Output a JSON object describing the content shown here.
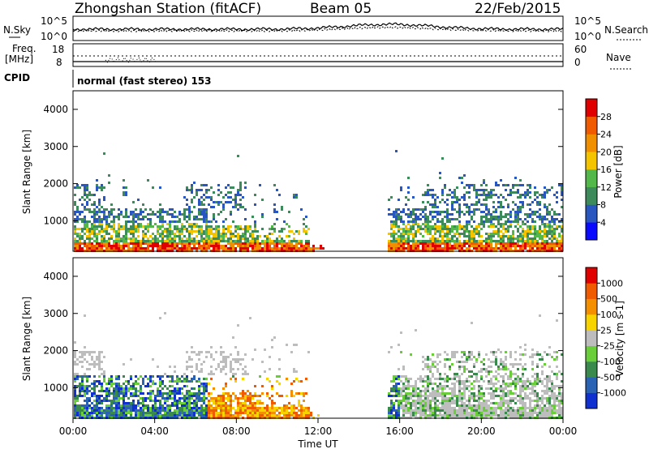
{
  "header": {
    "title": "Zhongshan Station (fitACF)",
    "beam": "Beam 05",
    "date": "22/Feb/2015"
  },
  "noise_panel": {
    "left_label": "N.Sky",
    "right_label": "N.Search",
    "left_ticks": [
      "10^5",
      "10^0"
    ],
    "right_ticks": [
      "10^5",
      "10^0"
    ]
  },
  "freq_panel": {
    "left_label_1": "Freq.",
    "left_label_2": "[MHz]",
    "left_ticks": [
      "18",
      "8"
    ],
    "right_label": "Nave",
    "right_ticks": [
      "60",
      "0"
    ]
  },
  "cpid": {
    "label": "CPID",
    "value": "normal (fast stereo) 153"
  },
  "x_axis": {
    "label": "Time UT",
    "ticks": [
      "00:00",
      "04:00",
      "08:00",
      "12:00",
      "16:00",
      "20:00",
      "00:00"
    ]
  },
  "chart_data": [
    {
      "type": "heatmap",
      "panel": "power",
      "ylabel": "Slant Range [km]",
      "x_range_hours": [
        0,
        24
      ],
      "ylim": [
        180,
        4500
      ],
      "yticks": [
        "1000",
        "2000",
        "3000",
        "4000"
      ],
      "colorbar": {
        "label": "Power [dB]",
        "ticks": [
          "4",
          "8",
          "12",
          "16",
          "20",
          "24",
          "28"
        ],
        "colors": [
          "#0a0aff",
          "#2a56c0",
          "#3d8a5a",
          "#52b84a",
          "#f5c400",
          "#f09000",
          "#f05a00",
          "#e00000"
        ]
      }
    },
    {
      "type": "heatmap",
      "panel": "velocity",
      "ylabel": "Slant Range [km]",
      "x_range_hours": [
        0,
        24
      ],
      "ylim": [
        180,
        4500
      ],
      "yticks": [
        "1000",
        "2000",
        "3000",
        "4000"
      ],
      "colorbar": {
        "label": "Velocity [m s-1]",
        "ticks": [
          "1000",
          "500",
          "100",
          "25",
          "-25",
          "-100",
          "-500",
          "-1000"
        ],
        "colors": [
          "#1030d0",
          "#2a62b4",
          "#3a8a4e",
          "#6acd3a",
          "#bdbdbd",
          "#f7d400",
          "#f49000",
          "#f05a00",
          "#e00000"
        ]
      }
    }
  ]
}
